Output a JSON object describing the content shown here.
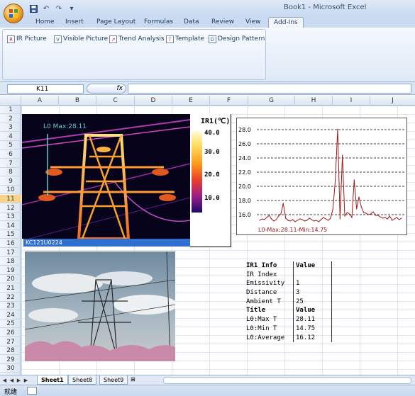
{
  "window": {
    "title": "Book1 - Microsoft Excel"
  },
  "quick_access": {
    "icons": [
      "save-icon",
      "undo-icon",
      "redo-icon",
      "customize-icon"
    ]
  },
  "tabs": [
    {
      "label": "Home"
    },
    {
      "label": "Insert"
    },
    {
      "label": "Page Layout"
    },
    {
      "label": "Formulas"
    },
    {
      "label": "Data"
    },
    {
      "label": "Review"
    },
    {
      "label": "View"
    },
    {
      "label": "Add-Ins",
      "active": true
    }
  ],
  "ribbon": {
    "buttons": [
      {
        "label": "IR Picture",
        "icon": "ir-picture-icon"
      },
      {
        "label": "Visible Picture",
        "icon": "visible-picture-icon"
      },
      {
        "label": "Trend Analysis",
        "icon": "trend-analysis-icon"
      },
      {
        "label": "Template",
        "icon": "template-icon"
      },
      {
        "label": "Design Pattern",
        "icon": "design-pattern-icon"
      }
    ]
  },
  "formula_bar": {
    "name_box": "K11",
    "fx": "fx",
    "formula": ""
  },
  "columns": [
    "A",
    "B",
    "C",
    "D",
    "E",
    "F",
    "G",
    "H",
    "I",
    "J"
  ],
  "rows": [
    "1",
    "2",
    "3",
    "4",
    "5",
    "6",
    "7",
    "8",
    "9",
    "10",
    "11",
    "12",
    "13",
    "14",
    "15",
    "16",
    "17",
    "18",
    "19",
    "20",
    "21",
    "22",
    "23",
    "24",
    "25",
    "26",
    "27",
    "28",
    "29",
    "30"
  ],
  "selected_row": "11",
  "ir_image": {
    "overlay_label": "L0 Max:28.11",
    "caption": "KC121U0224",
    "colorbar_title": "IR1(℃)",
    "colorbar_ticks": [
      "40.0",
      "30.0",
      "20.0",
      "10.0"
    ]
  },
  "chart_data": {
    "type": "line",
    "title": "",
    "legend": "L0-Max:28.11-Min:14.75",
    "yticks": [
      "28.0",
      "26.0",
      "24.0",
      "22.0",
      "20.0",
      "18.0",
      "16.0"
    ],
    "ylim": [
      15,
      29
    ],
    "grid": "dashed horizontal",
    "series": [
      {
        "values": [
          15.2,
          15.4,
          15.3,
          15.6,
          15.9,
          15.4,
          15.1,
          15.3,
          15.8,
          16.1,
          17.6,
          15.5,
          15.2,
          15.1,
          15.3,
          15.0,
          15.2,
          15.4,
          15.3,
          15.1,
          15.2,
          15.5,
          15.3,
          15.1,
          15.2,
          15.0,
          15.3,
          15.6,
          15.4,
          15.2,
          15.5,
          16.8,
          20.9,
          28.1,
          15.4,
          24.4,
          15.8,
          16.3,
          16.1,
          15.6,
          20.9,
          16.8,
          18.5,
          17.1,
          16.3,
          16.2,
          16.0,
          16.1,
          16.4,
          15.9,
          15.9,
          15.7,
          15.5,
          15.6,
          15.4,
          15.8,
          15.2,
          15.4,
          15.6,
          15.3,
          15.5
        ]
      }
    ]
  },
  "info_table": {
    "rows": [
      {
        "key": "IR1 Info",
        "value": "Value",
        "bold": true
      },
      {
        "key": "IR Index",
        "value": ""
      },
      {
        "key": "Emissivity",
        "value": "1"
      },
      {
        "key": "Distance",
        "value": "3"
      },
      {
        "key": "Ambient T",
        "value": "25"
      },
      {
        "key": "Title",
        "value": "Value",
        "bold": true
      },
      {
        "key": "L0:Max T",
        "value": "28.11"
      },
      {
        "key": "L0:Min T",
        "value": "14.75"
      },
      {
        "key": "L0:Average",
        "value": "16.12"
      }
    ]
  },
  "sheets": [
    {
      "label": "Sheet1",
      "active": true
    },
    {
      "label": "Sheet8"
    },
    {
      "label": "Sheet9"
    }
  ],
  "status": {
    "text": "就绪"
  }
}
